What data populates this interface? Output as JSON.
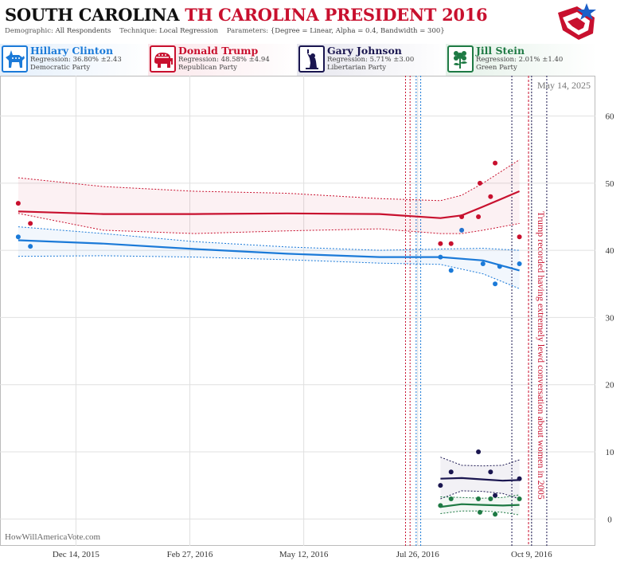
{
  "header": {
    "state": "SOUTH CAROLINA",
    "subtitle": "TH CAROLINA PRESIDENT 2016",
    "demographic_label": "Demographic:",
    "demographic_value": "All Respondents",
    "technique_label": "Technique:",
    "technique_value": "Local Regression",
    "parameters_label": "Parameters:",
    "parameters_value": "{Degree = Linear, Alpha = 0.4, Bandwidth = 300}"
  },
  "candidates": [
    {
      "name": "Hillary Clinton",
      "regression": "Regression: 36.80% ±2.43",
      "party": "Democratic Party",
      "color": "#1b7ad8",
      "bg": "#e4effb",
      "icon": "donkey-icon"
    },
    {
      "name": "Donald Trump",
      "regression": "Regression: 48.58% ±4.94",
      "party": "Republican Party",
      "color": "#c8102e",
      "bg": "#fbe6ea",
      "icon": "elephant-icon"
    },
    {
      "name": "Gary Johnson",
      "regression": "Regression: 5.71% ±3.00",
      "party": "Libertarian Party",
      "color": "#1a1650",
      "bg": "#e6e6ee",
      "icon": "liberty-icon"
    },
    {
      "name": "Jill Stein",
      "regression": "Regression: 2.01% ±1.40",
      "party": "Green Party",
      "color": "#1e7a44",
      "bg": "#e4f1e8",
      "icon": "flower-icon"
    }
  ],
  "chart_data": {
    "type": "scatter",
    "date_stamp": "May 14, 2025",
    "watermark": "HowWillAmericaVote.com",
    "annotation": "Trump recorded having extremely lewd conversation about women in 2005",
    "xlim": [
      "2015-10-25",
      "2016-11-20"
    ],
    "ylim": [
      -4,
      66
    ],
    "x_ticks": [
      {
        "date": "2015-12-14",
        "label": "Dec 14, 2015"
      },
      {
        "date": "2016-02-27",
        "label": "Feb 27, 2016"
      },
      {
        "date": "2016-05-12",
        "label": "May 12, 2016"
      },
      {
        "date": "2016-07-26",
        "label": "Jul 26, 2016"
      },
      {
        "date": "2016-10-09",
        "label": "Oct 9, 2016"
      }
    ],
    "y_ticks": [
      0,
      10,
      20,
      30,
      40,
      50,
      60
    ],
    "event_lines": {
      "convention_red": [
        "2016-07-18",
        "2016-07-21"
      ],
      "convention_blue": [
        "2016-07-25",
        "2016-07-28"
      ],
      "debates": [
        "2016-09-26",
        "2016-10-09",
        "2016-10-19"
      ],
      "tape": "2016-10-07"
    },
    "series": [
      {
        "name": "Hillary Clinton",
        "color": "#1b7ad8",
        "points": [
          [
            "2015-11-06",
            42
          ],
          [
            "2015-11-14",
            40.6
          ],
          [
            "2016-08-10",
            39
          ],
          [
            "2016-08-17",
            37
          ],
          [
            "2016-08-24",
            43
          ],
          [
            "2016-09-07",
            38
          ],
          [
            "2016-09-15",
            35
          ],
          [
            "2016-09-18",
            37.6
          ],
          [
            "2016-10-01",
            38
          ]
        ],
        "trend": [
          [
            "2015-11-06",
            41.5
          ],
          [
            "2016-01-01",
            41
          ],
          [
            "2016-03-01",
            40.2
          ],
          [
            "2016-05-01",
            39.5
          ],
          [
            "2016-07-01",
            39
          ],
          [
            "2016-08-10",
            39
          ],
          [
            "2016-09-07",
            38.5
          ],
          [
            "2016-10-01",
            37
          ]
        ],
        "upper": [
          [
            "2015-11-06",
            43.5
          ],
          [
            "2016-01-01",
            42.5
          ],
          [
            "2016-03-01",
            41.3
          ],
          [
            "2016-05-01",
            40.5
          ],
          [
            "2016-07-01",
            40
          ],
          [
            "2016-08-10",
            40.2
          ],
          [
            "2016-09-07",
            40.3
          ],
          [
            "2016-10-01",
            40
          ]
        ],
        "lower": [
          [
            "2015-11-06",
            39.1
          ],
          [
            "2016-01-01",
            39.2
          ],
          [
            "2016-03-01",
            39
          ],
          [
            "2016-05-01",
            38.6
          ],
          [
            "2016-07-01",
            38.1
          ],
          [
            "2016-08-10",
            37.9
          ],
          [
            "2016-09-07",
            36.5
          ],
          [
            "2016-10-01",
            34.3
          ]
        ]
      },
      {
        "name": "Donald Trump",
        "color": "#c8102e",
        "points": [
          [
            "2015-11-06",
            47
          ],
          [
            "2015-11-14",
            44
          ],
          [
            "2016-08-10",
            41
          ],
          [
            "2016-08-17",
            41
          ],
          [
            "2016-08-24",
            45
          ],
          [
            "2016-09-04",
            45
          ],
          [
            "2016-09-05",
            50
          ],
          [
            "2016-09-12",
            48
          ],
          [
            "2016-09-15",
            53
          ],
          [
            "2016-10-01",
            42
          ]
        ],
        "trend": [
          [
            "2015-11-06",
            45.8
          ],
          [
            "2016-01-01",
            45.4
          ],
          [
            "2016-03-01",
            45.4
          ],
          [
            "2016-05-01",
            45.5
          ],
          [
            "2016-07-01",
            45.4
          ],
          [
            "2016-08-10",
            44.8
          ],
          [
            "2016-08-24",
            45.2
          ],
          [
            "2016-09-07",
            46.5
          ],
          [
            "2016-10-01",
            48.8
          ]
        ],
        "upper": [
          [
            "2015-11-06",
            50.8
          ],
          [
            "2016-01-01",
            49.5
          ],
          [
            "2016-03-01",
            48.8
          ],
          [
            "2016-05-01",
            48.5
          ],
          [
            "2016-07-01",
            47.7
          ],
          [
            "2016-08-10",
            47.4
          ],
          [
            "2016-08-24",
            48.2
          ],
          [
            "2016-09-07",
            50
          ],
          [
            "2016-10-01",
            53.5
          ]
        ],
        "lower": [
          [
            "2015-11-06",
            45.5
          ],
          [
            "2016-01-01",
            43
          ],
          [
            "2016-03-01",
            42.5
          ],
          [
            "2016-05-01",
            42.9
          ],
          [
            "2016-07-01",
            43.2
          ],
          [
            "2016-08-10",
            42.5
          ],
          [
            "2016-08-24",
            42.5
          ],
          [
            "2016-09-07",
            43
          ],
          [
            "2016-10-01",
            44
          ]
        ]
      },
      {
        "name": "Gary Johnson",
        "color": "#1a1650",
        "points": [
          [
            "2016-08-10",
            5
          ],
          [
            "2016-08-17",
            7
          ],
          [
            "2016-09-04",
            10
          ],
          [
            "2016-09-12",
            7
          ],
          [
            "2016-09-15",
            3.5
          ],
          [
            "2016-10-01",
            6
          ]
        ],
        "trend": [
          [
            "2016-08-10",
            6
          ],
          [
            "2016-08-24",
            6.1
          ],
          [
            "2016-09-07",
            5.9
          ],
          [
            "2016-09-20",
            5.7
          ],
          [
            "2016-10-01",
            5.8
          ]
        ],
        "upper": [
          [
            "2016-08-10",
            9.2
          ],
          [
            "2016-08-24",
            8
          ],
          [
            "2016-09-07",
            7.9
          ],
          [
            "2016-09-20",
            8
          ],
          [
            "2016-10-01",
            8.8
          ]
        ],
        "lower": [
          [
            "2016-08-10",
            3
          ],
          [
            "2016-08-24",
            4.2
          ],
          [
            "2016-09-07",
            4.1
          ],
          [
            "2016-09-20",
            3.8
          ],
          [
            "2016-10-01",
            3
          ]
        ]
      },
      {
        "name": "Jill Stein",
        "color": "#1e7a44",
        "points": [
          [
            "2016-08-10",
            2
          ],
          [
            "2016-08-17",
            3
          ],
          [
            "2016-09-04",
            3
          ],
          [
            "2016-09-05",
            1
          ],
          [
            "2016-09-12",
            3
          ],
          [
            "2016-09-15",
            0.7
          ],
          [
            "2016-10-01",
            3
          ]
        ],
        "trend": [
          [
            "2016-08-10",
            1.8
          ],
          [
            "2016-08-24",
            2.2
          ],
          [
            "2016-09-07",
            2.1
          ],
          [
            "2016-09-20",
            2
          ],
          [
            "2016-10-01",
            2.1
          ]
        ],
        "upper": [
          [
            "2016-08-10",
            3.3
          ],
          [
            "2016-08-24",
            3.2
          ],
          [
            "2016-09-07",
            3.1
          ],
          [
            "2016-09-20",
            3.2
          ],
          [
            "2016-10-01",
            3.6
          ]
        ],
        "lower": [
          [
            "2016-08-10",
            0.8
          ],
          [
            "2016-08-24",
            1.2
          ],
          [
            "2016-09-07",
            1.2
          ],
          [
            "2016-09-20",
            1
          ],
          [
            "2016-10-01",
            0.6
          ]
        ]
      }
    ]
  }
}
